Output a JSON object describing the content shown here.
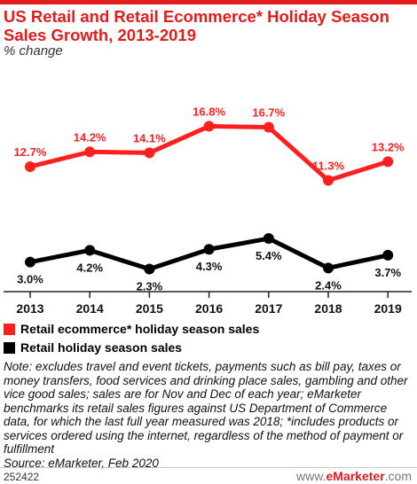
{
  "chart_data": {
    "type": "line",
    "title": "US Retail and Retail Ecommerce* Holiday Season Sales Growth, 2013-2019",
    "subtitle": "% change",
    "categories": [
      "2013",
      "2014",
      "2015",
      "2016",
      "2017",
      "2018",
      "2019"
    ],
    "series": [
      {
        "name": "Retail ecommerce* holiday season sales",
        "color": "#ff1f1f",
        "values": [
          12.7,
          14.2,
          14.1,
          16.8,
          16.7,
          11.3,
          13.2
        ],
        "labels": [
          "12.7%",
          "14.2%",
          "14.1%",
          "16.8%",
          "16.7%",
          "11.3%",
          "13.2%"
        ]
      },
      {
        "name": "Retail holiday season sales",
        "color": "#000000",
        "values": [
          3.0,
          4.2,
          2.3,
          4.3,
          5.4,
          2.4,
          3.7
        ],
        "labels": [
          "3.0%",
          "4.2%",
          "2.3%",
          "4.3%",
          "5.4%",
          "2.4%",
          "3.7%"
        ]
      }
    ],
    "ylim": [
      0,
      19
    ],
    "grid": false,
    "legend_placement": "bottom"
  },
  "note": "Note: excludes travel and event tickets, payments such as bill pay, taxes or money transfers, food services and drinking place sales, gambling and other vice good sales; sales are for Nov and Dec of each year; eMarketer benchmarks its retail sales figures against US Department of Commerce data, for which the last full year measured was 2018; *includes products or services ordered using the internet, regardless of the method of payment or fulfillment",
  "source": "Source: eMarketer, Feb 2020",
  "chart_id": "252422",
  "brand": {
    "prefix": "www.",
    "name": "eMarketer",
    "suffix": ".com"
  }
}
